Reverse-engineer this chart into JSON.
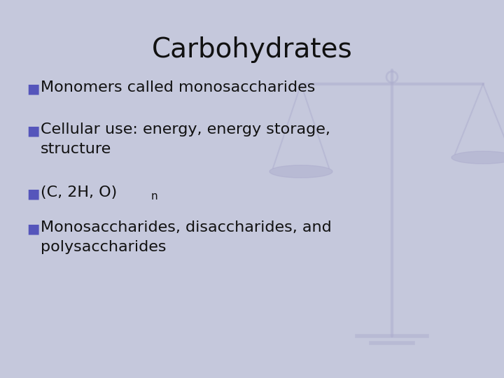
{
  "title": "Carbohydrates",
  "title_fontsize": 28,
  "title_color": "#111111",
  "background_color": "#c5c8dc",
  "bullet_color": "#5555bb",
  "text_color": "#111111",
  "bullet_char": "■",
  "bullet_fontsize": 16,
  "bullets": [
    {
      "lines": [
        "Monomers called monosaccharides"
      ],
      "has_sub": false
    },
    {
      "lines": [
        "Cellular use: energy, energy storage,",
        "structure"
      ],
      "has_sub": false
    },
    {
      "lines": [
        "(C, 2H, O)"
      ],
      "has_sub": true,
      "sub_text": "n"
    },
    {
      "lines": [
        "Monosaccharides, disaccharides, and",
        "polysaccharides"
      ],
      "has_sub": false
    }
  ],
  "scale_color": "#aaaacc",
  "scale_alpha": 0.45
}
